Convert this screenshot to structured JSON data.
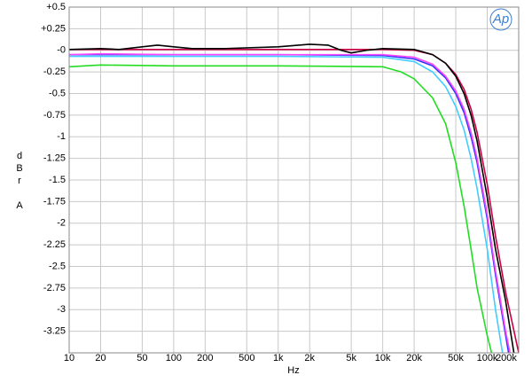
{
  "chart_data": {
    "type": "line",
    "logo": "Ap",
    "xlabel": "Hz",
    "ylabel": "dBr A",
    "xscale": "log",
    "grid": true,
    "xlim": [
      10,
      200000
    ],
    "ylim": [
      -3.5,
      0.5
    ],
    "xticks": [
      {
        "value": 10,
        "label": "10"
      },
      {
        "value": 20,
        "label": "20"
      },
      {
        "value": 50,
        "label": "50"
      },
      {
        "value": 100,
        "label": "100"
      },
      {
        "value": 200,
        "label": "200"
      },
      {
        "value": 500,
        "label": "500"
      },
      {
        "value": 1000,
        "label": "1k"
      },
      {
        "value": 2000,
        "label": "2k"
      },
      {
        "value": 5000,
        "label": "5k"
      },
      {
        "value": 10000,
        "label": "10k"
      },
      {
        "value": 20000,
        "label": "20k"
      },
      {
        "value": 50000,
        "label": "50k"
      },
      {
        "value": 100000,
        "label": "100k"
      },
      {
        "value": 200000,
        "label": "200k"
      }
    ],
    "yticks": [
      {
        "value": 0.5,
        "label": "+0.5"
      },
      {
        "value": 0.25,
        "label": "+0.25"
      },
      {
        "value": 0,
        "label": "-0"
      },
      -0.25,
      -0.5,
      -0.75,
      -1,
      -1.25,
      -1.5,
      -1.75,
      -2,
      -2.25,
      -2.5,
      -2.75,
      -3,
      -3.25
    ],
    "series": [
      {
        "color": "#3333ff",
        "x": [
          10,
          20,
          100,
          1000,
          10000,
          20000,
          30000,
          40000,
          50000,
          60000,
          70000,
          80000,
          100000,
          120000,
          150000,
          160000
        ],
        "values": [
          -0.05,
          -0.05,
          -0.05,
          -0.05,
          -0.06,
          -0.1,
          -0.18,
          -0.32,
          -0.5,
          -0.72,
          -1.0,
          -1.3,
          -1.95,
          -2.6,
          -3.3,
          -3.5
        ]
      },
      {
        "color": "#ff44ff",
        "x": [
          10,
          20,
          100,
          1000,
          10000,
          20000,
          30000,
          40000,
          50000,
          60000,
          70000,
          80000,
          100000,
          120000,
          150000,
          165000
        ],
        "values": [
          -0.05,
          -0.04,
          -0.05,
          -0.05,
          -0.05,
          -0.08,
          -0.16,
          -0.3,
          -0.47,
          -0.68,
          -0.95,
          -1.25,
          -1.9,
          -2.55,
          -3.25,
          -3.5
        ]
      },
      {
        "color": "#44ccff",
        "x": [
          10,
          20,
          100,
          1000,
          10000,
          20000,
          30000,
          40000,
          50000,
          60000,
          70000,
          80000,
          100000,
          120000,
          140000
        ],
        "values": [
          -0.07,
          -0.07,
          -0.07,
          -0.07,
          -0.08,
          -0.13,
          -0.25,
          -0.42,
          -0.65,
          -0.92,
          -1.25,
          -1.6,
          -2.3,
          -3.0,
          -3.5
        ]
      },
      {
        "color": "#22dd22",
        "x": [
          10,
          20,
          100,
          1000,
          10000,
          15000,
          20000,
          30000,
          40000,
          50000,
          60000,
          70000,
          80000,
          100000,
          110000
        ],
        "values": [
          -0.19,
          -0.17,
          -0.18,
          -0.18,
          -0.19,
          -0.25,
          -0.33,
          -0.55,
          -0.85,
          -1.3,
          -1.8,
          -2.3,
          -2.75,
          -3.3,
          -3.5
        ]
      },
      {
        "color": "#cc0044",
        "x": [
          10,
          20,
          100,
          1000,
          10000,
          20000,
          30000,
          40000,
          50000,
          60000,
          70000,
          80000,
          100000,
          120000,
          150000,
          200000
        ],
        "values": [
          0.01,
          0.01,
          0.01,
          0.01,
          0.01,
          0.0,
          -0.05,
          -0.15,
          -0.28,
          -0.45,
          -0.68,
          -0.95,
          -1.55,
          -2.15,
          -2.8,
          -3.5
        ]
      },
      {
        "color": "#000000",
        "x": [
          10,
          20,
          30,
          50,
          70,
          100,
          150,
          300,
          1000,
          2000,
          3000,
          4000,
          5000,
          7000,
          10000,
          20000,
          30000,
          40000,
          50000,
          60000,
          70000,
          80000,
          100000,
          120000,
          150000,
          180000
        ],
        "values": [
          0.01,
          0.02,
          0.01,
          0.04,
          0.06,
          0.04,
          0.02,
          0.02,
          0.04,
          0.07,
          0.06,
          0.0,
          -0.03,
          0.0,
          0.02,
          0.01,
          -0.05,
          -0.15,
          -0.3,
          -0.5,
          -0.75,
          -1.05,
          -1.7,
          -2.3,
          -2.9,
          -3.5
        ]
      }
    ]
  }
}
